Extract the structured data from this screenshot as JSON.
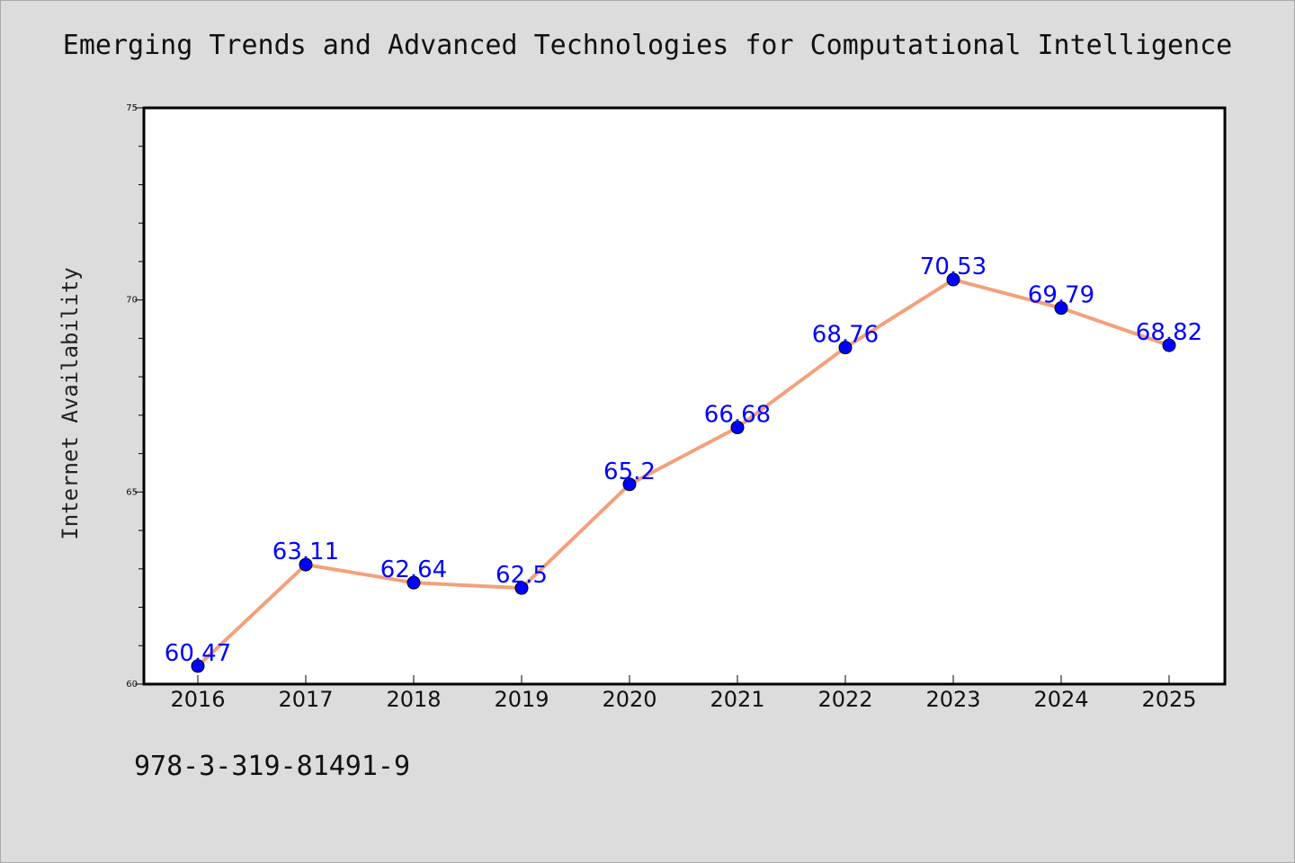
{
  "chart_data": {
    "type": "line",
    "title": "Emerging Trends and Advanced Technologies for Computational Intelligence",
    "xlabel": "",
    "ylabel": "Internet Availability",
    "categories": [
      "2016",
      "2017",
      "2018",
      "2019",
      "2020",
      "2021",
      "2022",
      "2023",
      "2024",
      "2025"
    ],
    "series": [
      {
        "values": [
          60.47,
          63.11,
          62.64,
          62.5,
          65.2,
          66.68,
          68.76,
          70.53,
          69.79,
          68.82
        ]
      }
    ],
    "data_labels": [
      "60.47",
      "63.11",
      "62.64",
      "62.5",
      "65.2",
      "66.68",
      "68.76",
      "70.53",
      "69.79",
      "68.82"
    ],
    "ylim": [
      60,
      75
    ],
    "y_ticks": [
      60,
      65,
      70,
      75
    ],
    "grid": false,
    "legend": "none",
    "line_color": "#f4a07a",
    "marker_color": "#0000ff",
    "label_color": "#0000ff"
  },
  "footer": {
    "isbn": "978-3-319-81491-9"
  }
}
